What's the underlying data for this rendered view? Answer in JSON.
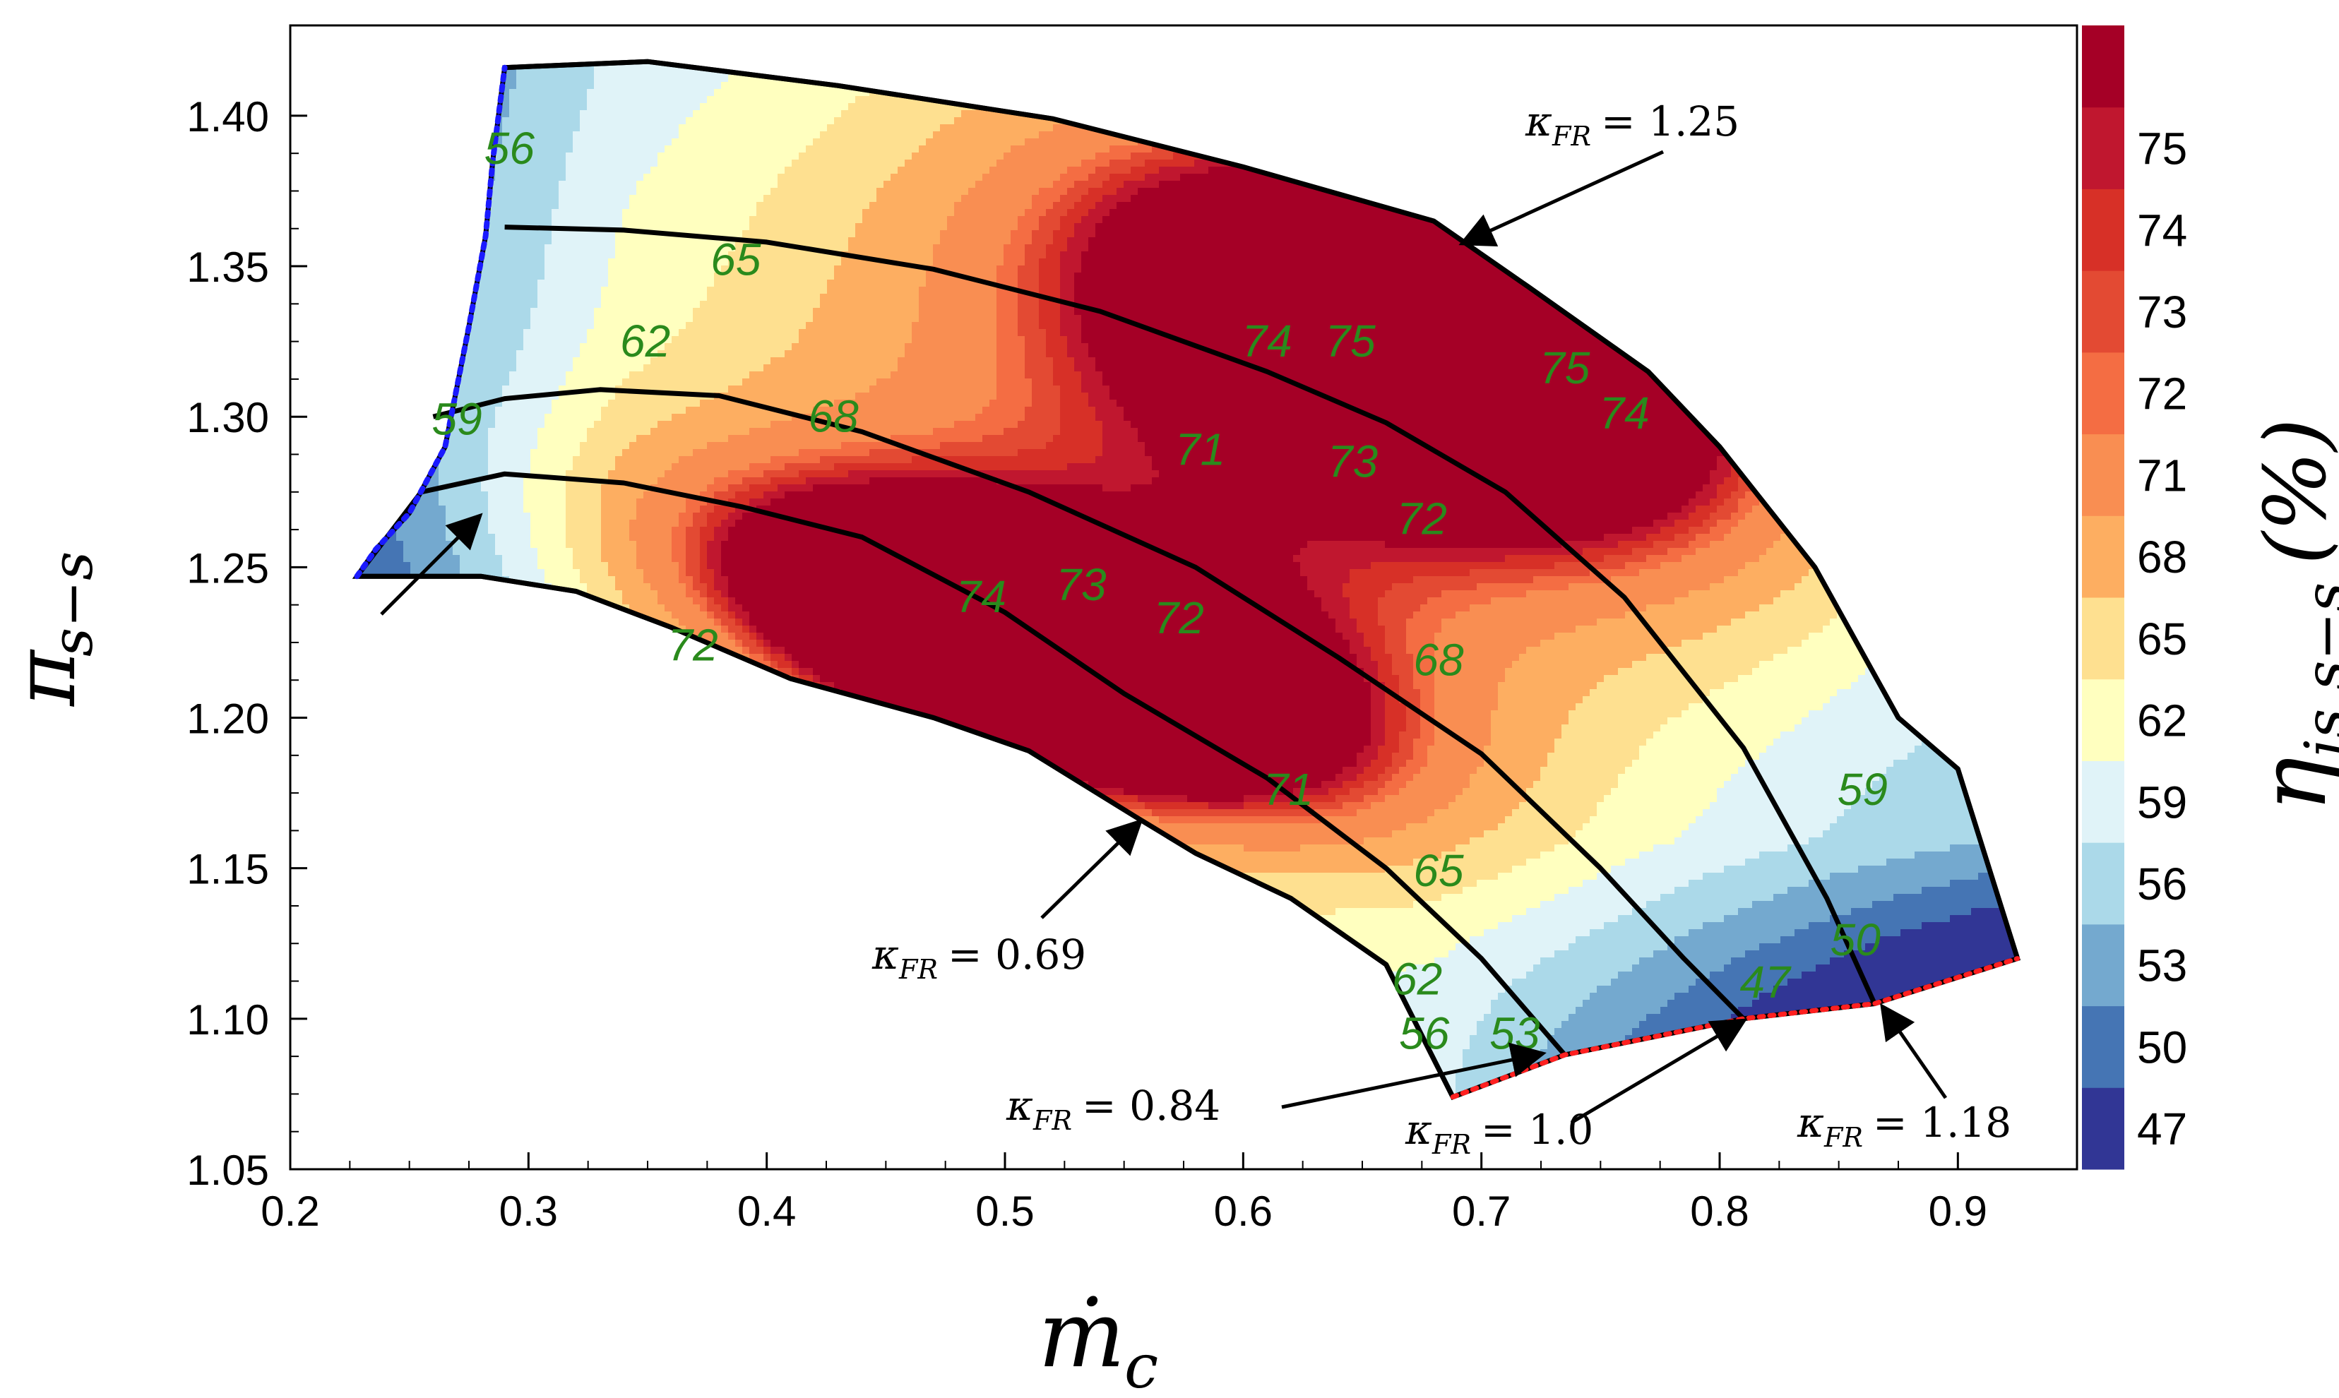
{
  "chart_data": {
    "type": "contour",
    "title": "",
    "xlabel": "ṁ",
    "xlabel_sub": "c",
    "ylabel": "π",
    "ylabel_sub": "s−s",
    "colorbar_label": "η",
    "colorbar_label_sub": "is,s−s",
    "colorbar_unit": "(%)",
    "xlim": [
      0.2,
      0.95
    ],
    "ylim": [
      1.05,
      1.43
    ],
    "x_ticks": [
      "0.2",
      "0.3",
      "0.4",
      "0.5",
      "0.6",
      "0.7",
      "0.8",
      "0.9"
    ],
    "y_ticks": [
      "1.05",
      "1.10",
      "1.15",
      "1.20",
      "1.25",
      "1.30",
      "1.35",
      "1.40"
    ],
    "levels": [
      44,
      47,
      50,
      53,
      56,
      59,
      62,
      65,
      68,
      71,
      72,
      73,
      74,
      75,
      76
    ],
    "colorbar_ticks": [
      "47",
      "50",
      "53",
      "56",
      "59",
      "62",
      "65",
      "68",
      "71",
      "72",
      "73",
      "74",
      "75"
    ],
    "colors": [
      "#313695",
      "#4575b4",
      "#74a9cf",
      "#abd9e9",
      "#e0f3f8",
      "#ffffbf",
      "#fee090",
      "#fdae61",
      "#f98e52",
      "#f46d43",
      "#e34a33",
      "#d73027",
      "#c0172f",
      "#a50026"
    ],
    "contour_labels": [
      {
        "text": "56",
        "x": 0.292,
        "y": 1.388
      },
      {
        "text": "65",
        "x": 0.387,
        "y": 1.351
      },
      {
        "text": "62",
        "x": 0.349,
        "y": 1.324
      },
      {
        "text": "59",
        "x": 0.27,
        "y": 1.298
      },
      {
        "text": "68",
        "x": 0.428,
        "y": 1.299
      },
      {
        "text": "74",
        "x": 0.61,
        "y": 1.324
      },
      {
        "text": "75",
        "x": 0.645,
        "y": 1.324
      },
      {
        "text": "75",
        "x": 0.735,
        "y": 1.315
      },
      {
        "text": "74",
        "x": 0.76,
        "y": 1.3
      },
      {
        "text": "71",
        "x": 0.582,
        "y": 1.288
      },
      {
        "text": "73",
        "x": 0.646,
        "y": 1.284
      },
      {
        "text": "72",
        "x": 0.675,
        "y": 1.265
      },
      {
        "text": "74",
        "x": 0.49,
        "y": 1.239
      },
      {
        "text": "73",
        "x": 0.532,
        "y": 1.243
      },
      {
        "text": "72",
        "x": 0.573,
        "y": 1.232
      },
      {
        "text": "72",
        "x": 0.369,
        "y": 1.223
      },
      {
        "text": "68",
        "x": 0.682,
        "y": 1.218
      },
      {
        "text": "71",
        "x": 0.619,
        "y": 1.175
      },
      {
        "text": "65",
        "x": 0.682,
        "y": 1.148
      },
      {
        "text": "59",
        "x": 0.86,
        "y": 1.175
      },
      {
        "text": "62",
        "x": 0.673,
        "y": 1.112
      },
      {
        "text": "50",
        "x": 0.857,
        "y": 1.125
      },
      {
        "text": "47",
        "x": 0.819,
        "y": 1.111
      },
      {
        "text": "56",
        "x": 0.676,
        "y": 1.094
      },
      {
        "text": "53",
        "x": 0.714,
        "y": 1.094
      }
    ],
    "speed_lines": [
      {
        "name": "κFR = 0.69",
        "points": [
          [
            0.228,
            1.247
          ],
          [
            0.28,
            1.247
          ],
          [
            0.32,
            1.242
          ],
          [
            0.36,
            1.23
          ],
          [
            0.41,
            1.213
          ],
          [
            0.47,
            1.2
          ],
          [
            0.51,
            1.189
          ],
          [
            0.555,
            1.167
          ],
          [
            0.58,
            1.155
          ],
          [
            0.62,
            1.14
          ],
          [
            0.66,
            1.118
          ],
          [
            0.688,
            1.074
          ]
        ]
      },
      {
        "name": "κFR = 0.84",
        "points": [
          [
            0.228,
            1.247
          ],
          [
            0.255,
            1.275
          ],
          [
            0.29,
            1.281
          ],
          [
            0.34,
            1.278
          ],
          [
            0.39,
            1.27
          ],
          [
            0.44,
            1.26
          ],
          [
            0.5,
            1.235
          ],
          [
            0.55,
            1.208
          ],
          [
            0.61,
            1.18
          ],
          [
            0.66,
            1.15
          ],
          [
            0.7,
            1.12
          ],
          [
            0.735,
            1.088
          ]
        ]
      },
      {
        "name": "κFR = 1.0",
        "points": [
          [
            0.26,
            1.3
          ],
          [
            0.29,
            1.306
          ],
          [
            0.33,
            1.309
          ],
          [
            0.38,
            1.307
          ],
          [
            0.44,
            1.295
          ],
          [
            0.51,
            1.275
          ],
          [
            0.58,
            1.25
          ],
          [
            0.64,
            1.22
          ],
          [
            0.7,
            1.188
          ],
          [
            0.75,
            1.15
          ],
          [
            0.785,
            1.12
          ],
          [
            0.81,
            1.1
          ]
        ]
      },
      {
        "name": "κFR = 1.18",
        "points": [
          [
            0.29,
            1.363
          ],
          [
            0.34,
            1.362
          ],
          [
            0.4,
            1.358
          ],
          [
            0.47,
            1.349
          ],
          [
            0.54,
            1.335
          ],
          [
            0.61,
            1.315
          ],
          [
            0.66,
            1.298
          ],
          [
            0.71,
            1.275
          ],
          [
            0.76,
            1.24
          ],
          [
            0.81,
            1.19
          ],
          [
            0.845,
            1.14
          ],
          [
            0.865,
            1.105
          ]
        ]
      },
      {
        "name": "κFR = 1.25",
        "points": [
          [
            0.29,
            1.416
          ],
          [
            0.35,
            1.418
          ],
          [
            0.43,
            1.41
          ],
          [
            0.52,
            1.399
          ],
          [
            0.6,
            1.383
          ],
          [
            0.68,
            1.365
          ],
          [
            0.72,
            1.343
          ],
          [
            0.77,
            1.315
          ],
          [
            0.8,
            1.29
          ],
          [
            0.84,
            1.25
          ],
          [
            0.875,
            1.2
          ],
          [
            0.9,
            1.183
          ],
          [
            0.925,
            1.12
          ]
        ]
      }
    ],
    "surge_line": [
      [
        0.228,
        1.247
      ],
      [
        0.236,
        1.256
      ],
      [
        0.25,
        1.268
      ],
      [
        0.265,
        1.29
      ],
      [
        0.275,
        1.33
      ],
      [
        0.282,
        1.36
      ],
      [
        0.285,
        1.385
      ],
      [
        0.29,
        1.416
      ]
    ],
    "choke_line": [
      [
        0.688,
        1.074
      ],
      [
        0.735,
        1.088
      ],
      [
        0.81,
        1.1
      ],
      [
        0.865,
        1.105
      ],
      [
        0.925,
        1.12
      ]
    ],
    "annotations": [
      {
        "label": "κ",
        "sub": "FR",
        "value": "= 1.25"
      },
      {
        "label": "κ",
        "sub": "FR",
        "value": "= 0.69"
      },
      {
        "label": "κ",
        "sub": "FR",
        "value": "= 0.84"
      },
      {
        "label": "κ",
        "sub": "FR",
        "value": "= 1.0"
      },
      {
        "label": "κ",
        "sub": "FR",
        "value": "= 1.18"
      }
    ]
  }
}
